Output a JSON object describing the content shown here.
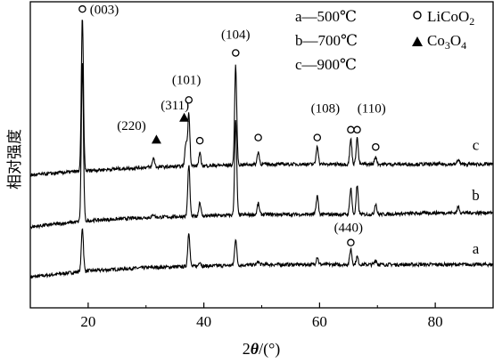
{
  "chart_data": {
    "type": "line",
    "ylabel": "相对强度",
    "xlabel": {
      "italic": "θ",
      "prefix": "2",
      "suffix": "/(°)"
    },
    "xlim": [
      10,
      90
    ],
    "xticks": [
      20,
      40,
      60,
      80
    ],
    "xtick_labels": [
      "20",
      "40",
      "60",
      "80"
    ],
    "series": [
      {
        "name": "a",
        "baseline": [
          [
            10,
            0.06
          ],
          [
            20,
            0.1
          ],
          [
            30,
            0.12
          ],
          [
            40,
            0.13
          ],
          [
            50,
            0.14
          ],
          [
            60,
            0.14
          ],
          [
            70,
            0.14
          ],
          [
            80,
            0.14
          ],
          [
            90,
            0.14
          ]
        ],
        "peaks": [
          [
            19.0,
            0.28
          ],
          [
            37.4,
            0.22
          ],
          [
            39.3,
            0.03
          ],
          [
            45.5,
            0.17
          ],
          [
            49.4,
            0.02
          ],
          [
            59.6,
            0.05
          ],
          [
            65.4,
            0.1
          ],
          [
            66.5,
            0.05
          ],
          [
            69.7,
            0.03
          ]
        ]
      },
      {
        "name": "b",
        "baseline": [
          [
            10,
            0.38
          ],
          [
            20,
            0.42
          ],
          [
            30,
            0.44
          ],
          [
            40,
            0.45
          ],
          [
            50,
            0.46
          ],
          [
            60,
            0.46
          ],
          [
            70,
            0.46
          ],
          [
            80,
            0.47
          ],
          [
            90,
            0.47
          ]
        ],
        "peaks": [
          [
            19.0,
            1.02
          ],
          [
            31.3,
            0.02
          ],
          [
            37.4,
            0.33
          ],
          [
            39.3,
            0.09
          ],
          [
            45.5,
            0.6
          ],
          [
            49.4,
            0.07
          ],
          [
            59.6,
            0.12
          ],
          [
            65.4,
            0.17
          ],
          [
            66.5,
            0.18
          ],
          [
            69.7,
            0.07
          ],
          [
            84.0,
            0.04
          ]
        ]
      },
      {
        "name": "c",
        "baseline": [
          [
            10,
            0.71
          ],
          [
            20,
            0.74
          ],
          [
            30,
            0.76
          ],
          [
            40,
            0.77
          ],
          [
            50,
            0.78
          ],
          [
            60,
            0.78
          ],
          [
            70,
            0.78
          ],
          [
            80,
            0.78
          ],
          [
            90,
            0.78
          ]
        ],
        "peaks": [
          [
            19.0,
            0.98
          ],
          [
            31.3,
            0.06
          ],
          [
            36.9,
            0.15
          ],
          [
            37.4,
            0.34
          ],
          [
            39.3,
            0.08
          ],
          [
            45.5,
            0.63
          ],
          [
            49.4,
            0.08
          ],
          [
            59.6,
            0.12
          ],
          [
            65.4,
            0.16
          ],
          [
            66.5,
            0.17
          ],
          [
            69.7,
            0.05
          ],
          [
            84.0,
            0.03
          ]
        ]
      }
    ],
    "series_labels": [
      {
        "text": "a",
        "x": 87.0,
        "y": 0.21
      },
      {
        "text": "b",
        "x": 87.0,
        "y": 0.55
      },
      {
        "text": "c",
        "x": 87.0,
        "y": 0.87
      }
    ],
    "circle_markers": [
      {
        "x": 19.0,
        "y": 1.77
      },
      {
        "x": 37.4,
        "y": 1.19
      },
      {
        "x": 39.3,
        "y": 0.93
      },
      {
        "x": 45.5,
        "y": 1.49
      },
      {
        "x": 49.4,
        "y": 0.95
      },
      {
        "x": 59.6,
        "y": 0.95
      },
      {
        "x": 65.4,
        "y": 1.0
      },
      {
        "x": 66.5,
        "y": 1.0
      },
      {
        "x": 69.7,
        "y": 0.89
      },
      {
        "x": 65.4,
        "y": 0.28
      }
    ],
    "triangle_markers": [
      {
        "x": 31.8,
        "y": 0.94
      },
      {
        "x": 36.6,
        "y": 1.08
      }
    ],
    "peak_labels": [
      {
        "text": "(003)",
        "x": 22.8,
        "y": 1.74
      },
      {
        "text": "(101)",
        "x": 37.0,
        "y": 1.29
      },
      {
        "text": "(104)",
        "x": 45.5,
        "y": 1.58
      },
      {
        "text": "(311)",
        "x": 35.0,
        "y": 1.13
      },
      {
        "text": "(220)",
        "x": 27.5,
        "y": 1.0
      },
      {
        "text": "(108)",
        "x": 61.0,
        "y": 1.11
      },
      {
        "text": "(110)",
        "x": 69.0,
        "y": 1.11
      },
      {
        "text": "(440)",
        "x": 65.0,
        "y": 0.35
      }
    ],
    "legend": {
      "placement": "top-right",
      "entries": [
        {
          "text": "a—500℃"
        },
        {
          "text": "b—700℃"
        },
        {
          "text": "c—900℃"
        }
      ],
      "phases": [
        {
          "marker": "circle",
          "text": "LiCoO",
          "sub": "2"
        },
        {
          "marker": "triangle",
          "text": "Co",
          "sub1": "3",
          "mid": "O",
          "sub2": "4"
        }
      ]
    }
  }
}
